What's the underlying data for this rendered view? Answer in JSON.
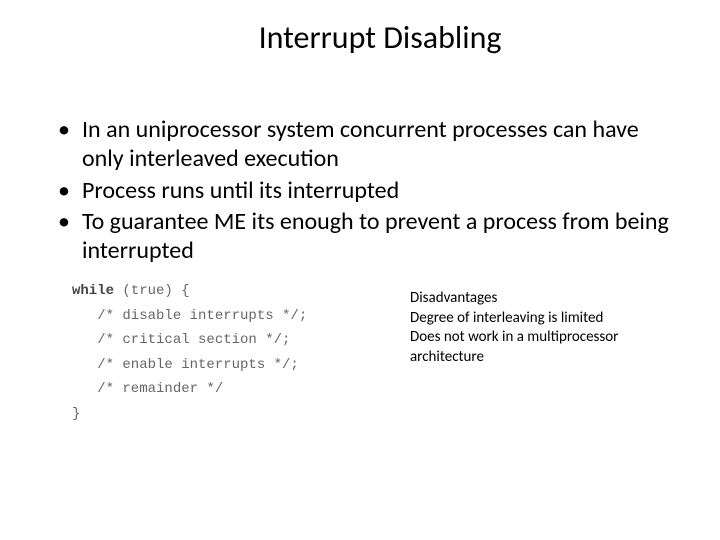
{
  "title": "Interrupt Disabling",
  "bullets": [
    "In an uniprocessor system concurrent processes can have only interleaved execution",
    "Process runs until its interrupted",
    "To guarantee ME its enough to prevent a process from being interrupted"
  ],
  "code": {
    "kw": "while",
    "l0_rest": " (true) {",
    "l1": "   /* disable interrupts */;",
    "l2": "   /* critical section */;",
    "l3": "   /* enable interrupts */;",
    "l4": "   /* remainder */",
    "l5": "}"
  },
  "disadv": {
    "h": "Disadvantages",
    "l1": "Degree of interleaving is limited",
    "l2": "Does not work in a multiprocessor architecture"
  },
  "colors": {
    "bg": "#ffffff",
    "text": "#000000",
    "code_comment": "#666666"
  }
}
